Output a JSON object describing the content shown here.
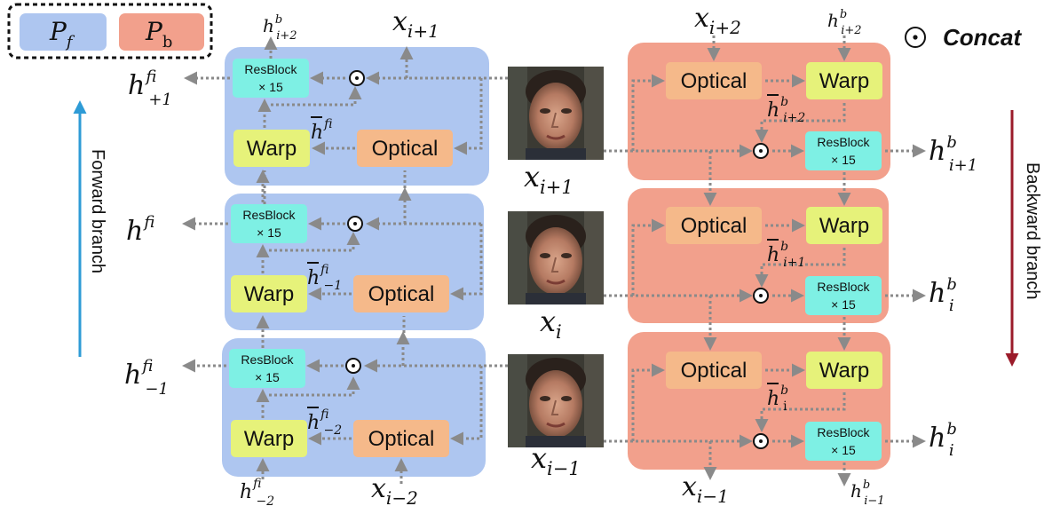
{
  "legend": {
    "pf_symbol": "P",
    "pf_sub": "f",
    "pb_symbol": "P",
    "pb_sub": "b",
    "pf_color": "#aec6f0",
    "pb_color": "#f2a08c",
    "concat_label": "Concat"
  },
  "colors": {
    "forward_panel": "#aec6f0",
    "backward_panel": "#f2a08c",
    "warp": "#e6f27a",
    "optical": "#f5b98a",
    "resblock": "#7ef0e4",
    "arrow": "#8a8a8a",
    "forward_arrow": "#2e9bd6",
    "backward_arrow": "#9b1b2a"
  },
  "blocks": {
    "warp": "Warp",
    "optical": "Optical",
    "resblock_line1": "ResBlock",
    "resblock_line2": "× 15"
  },
  "branches": {
    "forward": "Forward branch",
    "backward": "Backward branch"
  },
  "labels": {
    "h": "h",
    "x": "x",
    "f": "f",
    "b": "b",
    "i_plus_2": "i+2",
    "i_plus_1": "i+1",
    "i": "i",
    "i_minus_1": "i−1",
    "i_minus_2": "i−2",
    "i_roman": "i"
  },
  "icons": {
    "concat": "concat-odot-icon",
    "face": "face-photo"
  }
}
